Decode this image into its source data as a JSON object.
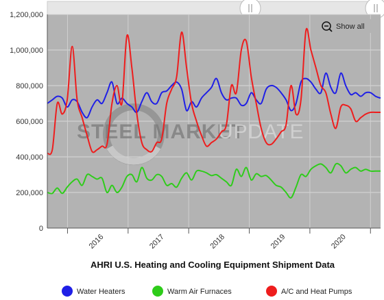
{
  "chart_data": {
    "type": "line",
    "title": "AHRI U.S. Heating and Cooling Equipment Shipment Data",
    "xlabel": "",
    "ylabel": "",
    "ylim": [
      0,
      1200000
    ],
    "yticks": [
      "0",
      "200,000",
      "400,000",
      "600,000",
      "800,000",
      "1,000,000",
      "1,200,000"
    ],
    "yticks_values": [
      0,
      200000,
      400000,
      600000,
      800000,
      1000000,
      1200000
    ],
    "xticks": [
      "2016",
      "2017",
      "2018",
      "2019",
      "2020"
    ],
    "grid": true,
    "legend_position": "bottom",
    "plot_background": "#b3b3b3",
    "x_start": "2015-09",
    "x_end": "2021-03",
    "series": [
      {
        "name": "Water Heaters",
        "color": "#1f1fe6",
        "values": [
          700000,
          720000,
          740000,
          730000,
          680000,
          720000,
          710000,
          650000,
          620000,
          680000,
          720000,
          700000,
          760000,
          820000,
          700000,
          730000,
          700000,
          680000,
          650000,
          710000,
          760000,
          710000,
          700000,
          760000,
          770000,
          800000,
          820000,
          780000,
          660000,
          710000,
          680000,
          730000,
          760000,
          790000,
          840000,
          760000,
          720000,
          730000,
          730000,
          690000,
          700000,
          760000,
          720000,
          700000,
          780000,
          800000,
          790000,
          760000,
          720000,
          660000,
          700000,
          820000,
          840000,
          820000,
          780000,
          760000,
          870000,
          790000,
          760000,
          870000,
          800000,
          750000,
          760000,
          740000,
          760000,
          760000,
          740000,
          730000
        ]
      },
      {
        "name": "Warm Air Furnaces",
        "color": "#2ecc1a",
        "values": [
          200000,
          195000,
          225000,
          195000,
          230000,
          260000,
          275000,
          240000,
          300000,
          290000,
          275000,
          280000,
          200000,
          240000,
          200000,
          230000,
          290000,
          300000,
          260000,
          340000,
          280000,
          270000,
          300000,
          290000,
          240000,
          250000,
          230000,
          280000,
          310000,
          270000,
          320000,
          320000,
          310000,
          295000,
          300000,
          280000,
          260000,
          240000,
          330000,
          290000,
          340000,
          270000,
          305000,
          290000,
          295000,
          270000,
          240000,
          230000,
          200000,
          170000,
          230000,
          300000,
          290000,
          330000,
          350000,
          360000,
          340000,
          310000,
          360000,
          350000,
          310000,
          330000,
          340000,
          320000,
          330000,
          320000,
          320000,
          320000
        ]
      },
      {
        "name": "A/C and Heat Pumps",
        "color": "#ee1d1d",
        "values": [
          420000,
          440000,
          700000,
          640000,
          720000,
          1020000,
          720000,
          620000,
          520000,
          430000,
          440000,
          460000,
          470000,
          700000,
          800000,
          700000,
          1080000,
          900000,
          640000,
          480000,
          440000,
          430000,
          480000,
          500000,
          700000,
          780000,
          850000,
          1100000,
          900000,
          700000,
          600000,
          520000,
          460000,
          480000,
          500000,
          540000,
          580000,
          800000,
          760000,
          1000000,
          1050000,
          850000,
          700000,
          560000,
          480000,
          470000,
          500000,
          540000,
          580000,
          800000,
          640000,
          720000,
          1110000,
          1000000,
          900000,
          800000,
          760000,
          640000,
          560000,
          680000,
          690000,
          670000,
          600000,
          620000,
          640000,
          650000,
          650000,
          650000
        ]
      }
    ]
  },
  "controls": {
    "show_all_label": "Show all",
    "show_all_icon": "zoom-out-icon",
    "navigator_handle_icon": "grip-icon"
  },
  "watermark": {
    "part1": "STEEL MARKET",
    "part2": "UPDATE"
  }
}
